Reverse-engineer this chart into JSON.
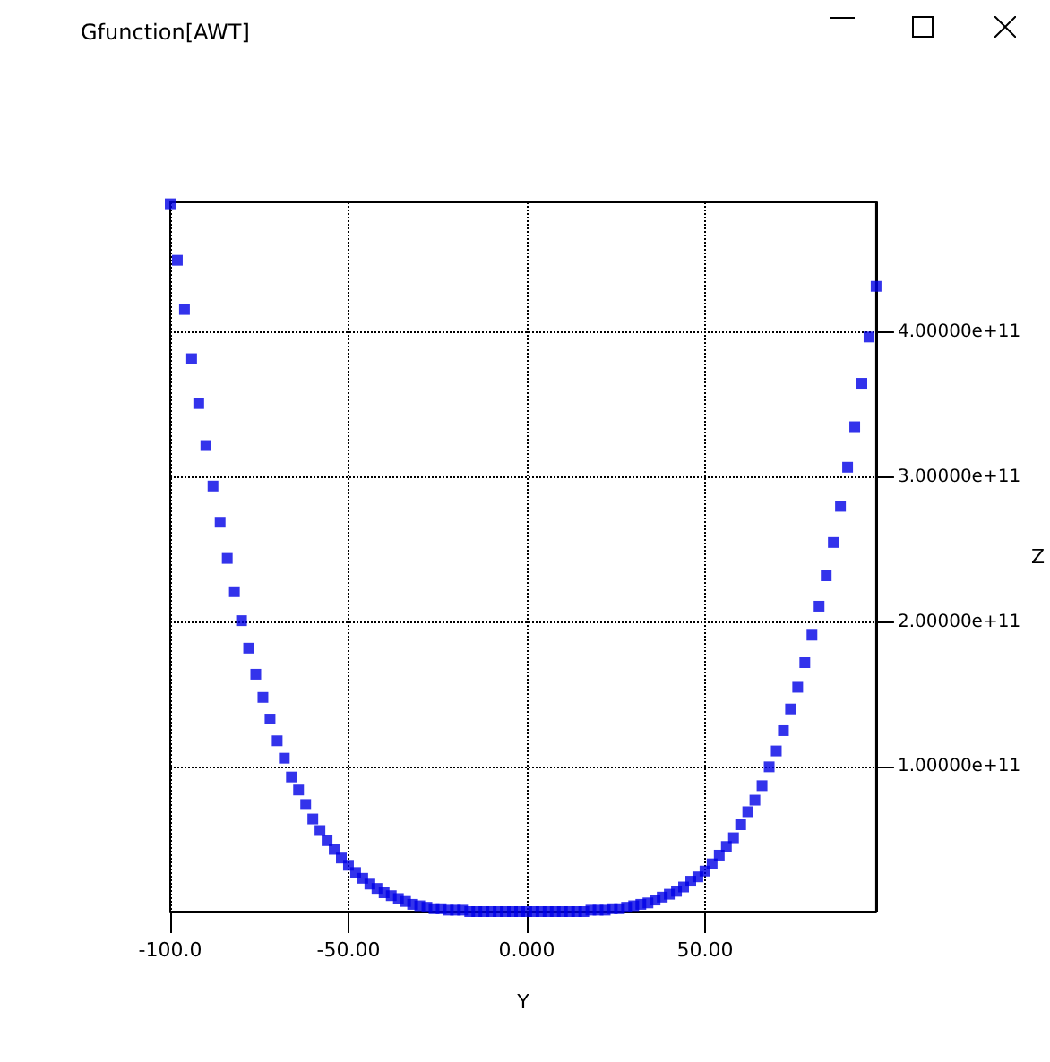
{
  "chart_data": {
    "type": "scatter",
    "title": "Gfunction[AWT]",
    "xlabel": "Y",
    "ylabel": "Z",
    "x": [
      -100,
      -98,
      -96,
      -94,
      -92,
      -90,
      -88,
      -86,
      -84,
      -82,
      -80,
      -78,
      -76,
      -74,
      -72,
      -70,
      -68,
      -66,
      -64,
      -62,
      -60,
      -58,
      -56,
      -54,
      -52,
      -50,
      -48,
      -46,
      -44,
      -42,
      -40,
      -38,
      -36,
      -34,
      -32,
      -30,
      -28,
      -26,
      -24,
      -22,
      -20,
      -18,
      -16,
      -14,
      -12,
      -10,
      -8,
      -6,
      -4,
      -2,
      0,
      2,
      4,
      6,
      8,
      10,
      12,
      14,
      16,
      18,
      20,
      22,
      24,
      26,
      28,
      30,
      32,
      34,
      36,
      38,
      40,
      42,
      44,
      46,
      48,
      50,
      52,
      54,
      56,
      58,
      60,
      62,
      64,
      66,
      68,
      70,
      72,
      74,
      76,
      78,
      80,
      82,
      84,
      86,
      88,
      90,
      92,
      94,
      96,
      98
    ],
    "series": [
      {
        "color": "#0000e6",
        "values": [
          489000000000.0,
          450000000000.0,
          416000000000.0,
          382000000000.0,
          351000000000.0,
          322000000000.0,
          294000000000.0,
          269000000000.0,
          244000000000.0,
          221000000000.0,
          201000000000.0,
          182000000000.0,
          164000000000.0,
          148000000000.0,
          133000000000.0,
          118000000000.0,
          106000000000.0,
          93000000000.0,
          84000000000.0,
          74000000000.0,
          64000000000.0,
          56000000000.0,
          49000000000.0,
          43000000000.0,
          37000000000.0,
          32000000000.0,
          27000000000.0,
          23000000000.0,
          19000000000.0,
          16000000000.0,
          13000000000.0,
          11000000000.0,
          9000000000.0,
          7000000000.0,
          5000000000.0,
          4000000000.0,
          3000000000.0,
          2000000000.0,
          2000000000.0,
          1000000000.0,
          1000000000.0,
          1000000000.0,
          0,
          0,
          0,
          0,
          0,
          0,
          0,
          0,
          0,
          0,
          0,
          0,
          0,
          0,
          0,
          0,
          0,
          1000000000.0,
          1000000000.0,
          1000000000.0,
          2000000000.0,
          2000000000.0,
          3000000000.0,
          4000000000.0,
          5000000000.0,
          6000000000.0,
          8000000000.0,
          10000000000.0,
          12000000000.0,
          14000000000.0,
          17000000000.0,
          21000000000.0,
          24000000000.0,
          28000000000.0,
          33000000000.0,
          39000000000.0,
          45000000000.0,
          51000000000.0,
          60000000000.0,
          69000000000.0,
          77000000000.0,
          87000000000.0,
          100000000000.0,
          111000000000.0,
          125000000000.0,
          140000000000.0,
          155000000000.0,
          172000000000.0,
          191000000000.0,
          211000000000.0,
          232000000000.0,
          255000000000.0,
          280000000000.0,
          307000000000.0,
          335000000000.0,
          365000000000.0,
          397000000000.0,
          432000000000.0
        ]
      }
    ],
    "xlim": [
      -100,
      98
    ],
    "ylim": [
      0,
      490000000000.0
    ],
    "xticks": [
      {
        "value": -100,
        "label": "-100.0"
      },
      {
        "value": -50,
        "label": "-50.00"
      },
      {
        "value": 0,
        "label": "0.000"
      },
      {
        "value": 50,
        "label": "50.00"
      }
    ],
    "yticks": [
      {
        "value": 100000000000.0,
        "label": "1.00000e+11"
      },
      {
        "value": 200000000000.0,
        "label": "2.00000e+11"
      },
      {
        "value": 300000000000.0,
        "label": "3.00000e+11"
      },
      {
        "value": 400000000000.0,
        "label": "4.00000e+11"
      }
    ],
    "grid": true,
    "marker": "square"
  }
}
